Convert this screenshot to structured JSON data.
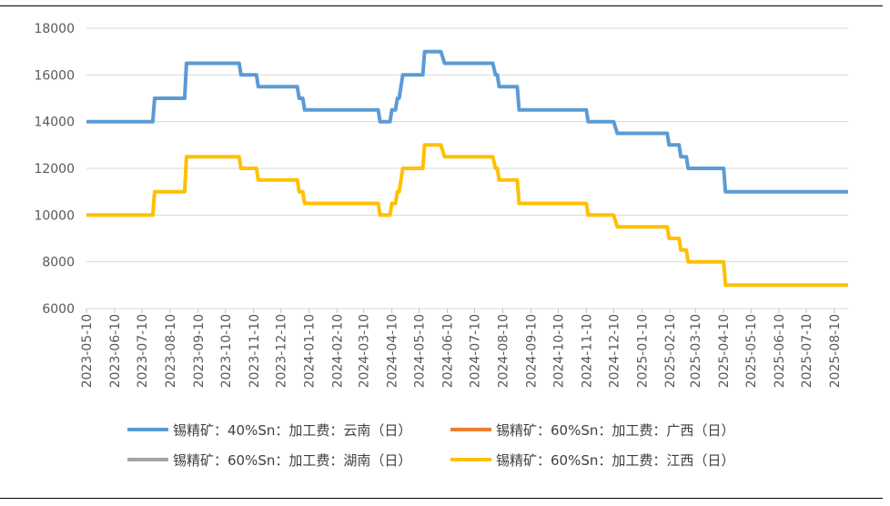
{
  "chart_data": {
    "type": "line",
    "title": "",
    "xlabel": "",
    "ylabel": "",
    "ylim": [
      6000,
      18000
    ],
    "yticks": [
      6000,
      8000,
      10000,
      12000,
      14000,
      16000,
      18000
    ],
    "grid": "horizontal",
    "legend_position": "bottom",
    "x_tick_labels": [
      "2023-05-10",
      "2023-06-10",
      "2023-07-10",
      "2023-08-10",
      "2023-09-10",
      "2023-10-10",
      "2023-11-10",
      "2023-12-10",
      "2024-01-10",
      "2024-02-10",
      "2024-03-10",
      "2024-04-10",
      "2024-05-10",
      "2024-06-10",
      "2024-07-10",
      "2024-08-10",
      "2024-09-10",
      "2024-10-10",
      "2024-11-10",
      "2024-12-10",
      "2025-01-10",
      "2025-02-10",
      "2025-03-10",
      "2025-04-10",
      "2025-05-10",
      "2025-06-10",
      "2025-07-10",
      "2025-08-10"
    ],
    "x_range": [
      "2023-05-10",
      "2025-08-25"
    ],
    "series": [
      {
        "name": "锡精矿：40%Sn：加工费：云南（日）",
        "color": "#5B9BD5",
        "points": [
          [
            "2023-05-10",
            14000
          ],
          [
            "2023-07-22",
            14000
          ],
          [
            "2023-07-24",
            15000
          ],
          [
            "2023-08-26",
            15000
          ],
          [
            "2023-08-28",
            16500
          ],
          [
            "2023-10-25",
            16500
          ],
          [
            "2023-10-27",
            16000
          ],
          [
            "2023-11-13",
            16000
          ],
          [
            "2023-11-15",
            15500
          ],
          [
            "2023-12-28",
            15500
          ],
          [
            "2023-12-30",
            15000
          ],
          [
            "2024-01-03",
            15000
          ],
          [
            "2024-01-05",
            14500
          ],
          [
            "2024-03-26",
            14500
          ],
          [
            "2024-03-28",
            14000
          ],
          [
            "2024-04-08",
            14000
          ],
          [
            "2024-04-10",
            14500
          ],
          [
            "2024-04-14",
            14500
          ],
          [
            "2024-04-16",
            15000
          ],
          [
            "2024-04-18",
            15000
          ],
          [
            "2024-04-22",
            16000
          ],
          [
            "2024-05-14",
            16000
          ],
          [
            "2024-05-16",
            17000
          ],
          [
            "2024-06-03",
            17000
          ],
          [
            "2024-06-07",
            16500
          ],
          [
            "2024-07-30",
            16500
          ],
          [
            "2024-08-02",
            16000
          ],
          [
            "2024-08-04",
            16000
          ],
          [
            "2024-08-06",
            15500
          ],
          [
            "2024-08-26",
            15500
          ],
          [
            "2024-08-28",
            14500
          ],
          [
            "2024-11-10",
            14500
          ],
          [
            "2024-11-12",
            14000
          ],
          [
            "2024-12-10",
            14000
          ],
          [
            "2024-12-14",
            13500
          ],
          [
            "2025-02-07",
            13500
          ],
          [
            "2025-02-09",
            13000
          ],
          [
            "2025-02-20",
            13000
          ],
          [
            "2025-02-22",
            12500
          ],
          [
            "2025-02-28",
            12500
          ],
          [
            "2025-03-02",
            12000
          ],
          [
            "2025-04-10",
            12000
          ],
          [
            "2025-04-12",
            11000
          ],
          [
            "2025-08-25",
            11000
          ]
        ]
      },
      {
        "name": "锡精矿：60%Sn：加工费：广西（日）",
        "color": "#ED7D31",
        "points": []
      },
      {
        "name": "锡精矿：60%Sn：加工费：湖南（日）",
        "color": "#A5A5A5",
        "points": []
      },
      {
        "name": "锡精矿：60%Sn：加工费：江西（日）",
        "color": "#FFC000",
        "points": [
          [
            "2023-05-10",
            10000
          ],
          [
            "2023-07-22",
            10000
          ],
          [
            "2023-07-24",
            11000
          ],
          [
            "2023-08-26",
            11000
          ],
          [
            "2023-08-28",
            12500
          ],
          [
            "2023-10-25",
            12500
          ],
          [
            "2023-10-27",
            12000
          ],
          [
            "2023-11-13",
            12000
          ],
          [
            "2023-11-15",
            11500
          ],
          [
            "2023-12-28",
            11500
          ],
          [
            "2023-12-30",
            11000
          ],
          [
            "2024-01-03",
            11000
          ],
          [
            "2024-01-05",
            10500
          ],
          [
            "2024-03-26",
            10500
          ],
          [
            "2024-03-28",
            10000
          ],
          [
            "2024-04-08",
            10000
          ],
          [
            "2024-04-10",
            10500
          ],
          [
            "2024-04-14",
            10500
          ],
          [
            "2024-04-16",
            11000
          ],
          [
            "2024-04-18",
            11000
          ],
          [
            "2024-04-22",
            12000
          ],
          [
            "2024-05-14",
            12000
          ],
          [
            "2024-05-16",
            13000
          ],
          [
            "2024-06-03",
            13000
          ],
          [
            "2024-06-07",
            12500
          ],
          [
            "2024-07-30",
            12500
          ],
          [
            "2024-08-02",
            12000
          ],
          [
            "2024-08-04",
            12000
          ],
          [
            "2024-08-06",
            11500
          ],
          [
            "2024-08-26",
            11500
          ],
          [
            "2024-08-28",
            10500
          ],
          [
            "2024-11-10",
            10500
          ],
          [
            "2024-11-12",
            10000
          ],
          [
            "2024-12-10",
            10000
          ],
          [
            "2024-12-14",
            9500
          ],
          [
            "2025-02-07",
            9500
          ],
          [
            "2025-02-09",
            9000
          ],
          [
            "2025-02-20",
            9000
          ],
          [
            "2025-02-22",
            8500
          ],
          [
            "2025-02-28",
            8500
          ],
          [
            "2025-03-02",
            8000
          ],
          [
            "2025-04-10",
            8000
          ],
          [
            "2025-04-12",
            7000
          ],
          [
            "2025-08-25",
            7000
          ]
        ]
      }
    ]
  }
}
